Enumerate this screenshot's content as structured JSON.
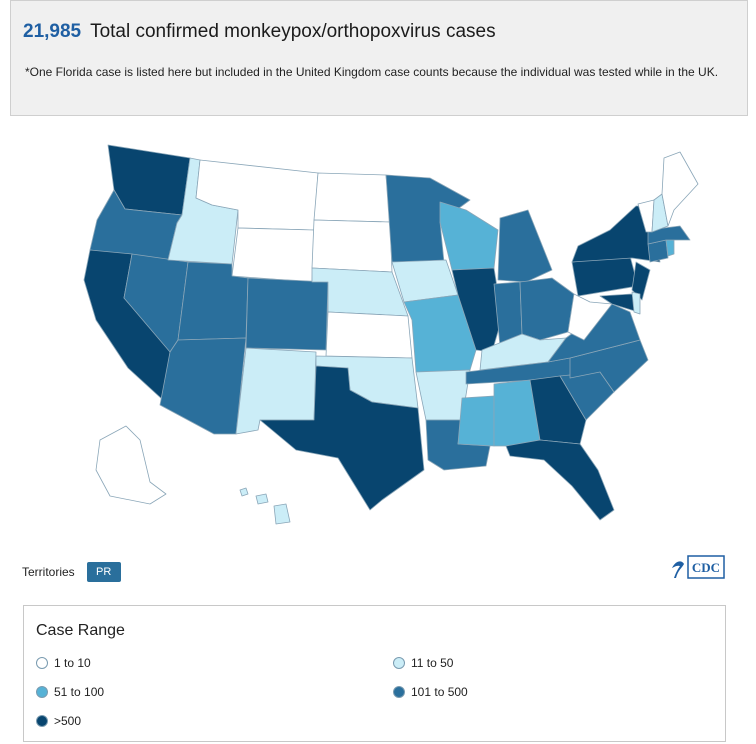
{
  "header": {
    "total_count": "21,985",
    "total_label": "Total confirmed monkeypox/orthopoxvirus cases",
    "footnote": "*One Florida case is listed here but included in the United Kingdom case counts because the individual was tested while in the UK."
  },
  "territories": {
    "label": "Territories",
    "pr_label": "PR",
    "pr_color": "#2a6f9c"
  },
  "logo": {
    "text": "CDC",
    "color": "#1f5fa3"
  },
  "legend": {
    "title": "Case Range",
    "items": [
      {
        "label": "1 to 10",
        "color": "#ffffff"
      },
      {
        "label": "11 to 50",
        "color": "#cbedf7"
      },
      {
        "label": "51 to 100",
        "color": "#56b2d6"
      },
      {
        "label": "101 to 500",
        "color": "#2a6f9c"
      },
      {
        "label": ">500",
        "color": "#08456f"
      }
    ]
  },
  "map": {
    "category_colors": {
      "r1": "#ffffff",
      "r2": "#cbedf7",
      "r3": "#56b2d6",
      "r4": "#2a6f9c",
      "r5": "#08456f"
    },
    "states": [
      {
        "name": "Washington",
        "cat": "r5"
      },
      {
        "name": "Oregon",
        "cat": "r4"
      },
      {
        "name": "California",
        "cat": "r5"
      },
      {
        "name": "Nevada",
        "cat": "r4"
      },
      {
        "name": "Idaho",
        "cat": "r2"
      },
      {
        "name": "Montana",
        "cat": "r1"
      },
      {
        "name": "Wyoming",
        "cat": "r1"
      },
      {
        "name": "Utah",
        "cat": "r4"
      },
      {
        "name": "Arizona",
        "cat": "r4"
      },
      {
        "name": "Colorado",
        "cat": "r4"
      },
      {
        "name": "New Mexico",
        "cat": "r2"
      },
      {
        "name": "North Dakota",
        "cat": "r1"
      },
      {
        "name": "South Dakota",
        "cat": "r1"
      },
      {
        "name": "Nebraska",
        "cat": "r2"
      },
      {
        "name": "Kansas",
        "cat": "r1"
      },
      {
        "name": "Oklahoma",
        "cat": "r2"
      },
      {
        "name": "Texas",
        "cat": "r5"
      },
      {
        "name": "Minnesota",
        "cat": "r4"
      },
      {
        "name": "Iowa",
        "cat": "r2"
      },
      {
        "name": "Missouri",
        "cat": "r3"
      },
      {
        "name": "Arkansas",
        "cat": "r2"
      },
      {
        "name": "Louisiana",
        "cat": "r4"
      },
      {
        "name": "Wisconsin",
        "cat": "r3"
      },
      {
        "name": "Illinois",
        "cat": "r5"
      },
      {
        "name": "Michigan",
        "cat": "r4"
      },
      {
        "name": "Indiana",
        "cat": "r4"
      },
      {
        "name": "Ohio",
        "cat": "r4"
      },
      {
        "name": "Kentucky",
        "cat": "r2"
      },
      {
        "name": "Tennessee",
        "cat": "r4"
      },
      {
        "name": "Mississippi",
        "cat": "r3"
      },
      {
        "name": "Alabama",
        "cat": "r3"
      },
      {
        "name": "Georgia",
        "cat": "r5"
      },
      {
        "name": "Florida",
        "cat": "r5"
      },
      {
        "name": "South Carolina",
        "cat": "r4"
      },
      {
        "name": "North Carolina",
        "cat": "r4"
      },
      {
        "name": "Virginia",
        "cat": "r4"
      },
      {
        "name": "West Virginia",
        "cat": "r1"
      },
      {
        "name": "Pennsylvania",
        "cat": "r5"
      },
      {
        "name": "New York",
        "cat": "r5"
      },
      {
        "name": "New Jersey",
        "cat": "r5"
      },
      {
        "name": "Maryland",
        "cat": "r5"
      },
      {
        "name": "Delaware",
        "cat": "r2"
      },
      {
        "name": "Connecticut",
        "cat": "r4"
      },
      {
        "name": "Rhode Island",
        "cat": "r3"
      },
      {
        "name": "Massachusetts",
        "cat": "r4"
      },
      {
        "name": "Vermont",
        "cat": "r1"
      },
      {
        "name": "New Hampshire",
        "cat": "r2"
      },
      {
        "name": "Maine",
        "cat": "r1"
      },
      {
        "name": "Alaska",
        "cat": "r1"
      },
      {
        "name": "Hawaii",
        "cat": "r2"
      }
    ]
  }
}
